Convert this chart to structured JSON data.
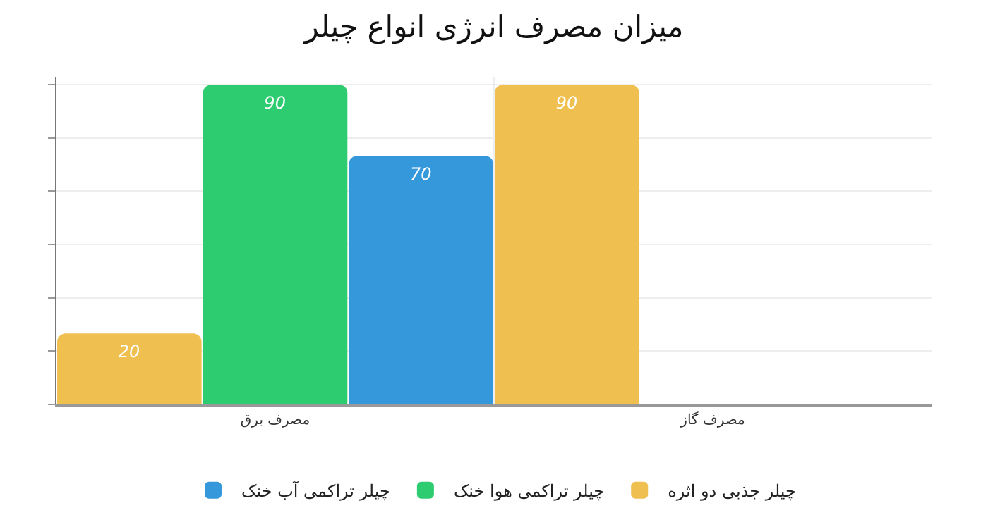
{
  "chart_data": {
    "type": "bar",
    "title": "میزان مصرف انرژی انواع چیلر",
    "categories": [
      "مصرف برق",
      "مصرف گاز"
    ],
    "series": [
      {
        "name": "چیلر جذبی دو اثره",
        "color": "#efbf50",
        "values": [
          20,
          90
        ],
        "value_labels": [
          "20",
          "90"
        ]
      },
      {
        "name": "چیلر تراکمی هوا خنک",
        "color": "#2ecc71",
        "values": [
          90,
          0
        ],
        "value_labels": [
          "90",
          null
        ]
      },
      {
        "name": "چیلر تراکمی آب خنک",
        "color": "#3598db",
        "values": [
          70,
          0
        ],
        "value_labels": [
          "70",
          null
        ]
      }
    ],
    "ylim": [
      0,
      92
    ],
    "yticks": [
      {
        "value": 0,
        "label": null
      },
      {
        "value": 15,
        "label": null
      },
      {
        "value": 30,
        "label": null
      },
      {
        "value": 45,
        "label": null
      },
      {
        "value": 60,
        "label": null
      },
      {
        "value": 75,
        "label": null
      },
      {
        "value": 90,
        "label": null
      }
    ],
    "grid": "y",
    "legend": "bottom",
    "tick_labels": "x"
  }
}
